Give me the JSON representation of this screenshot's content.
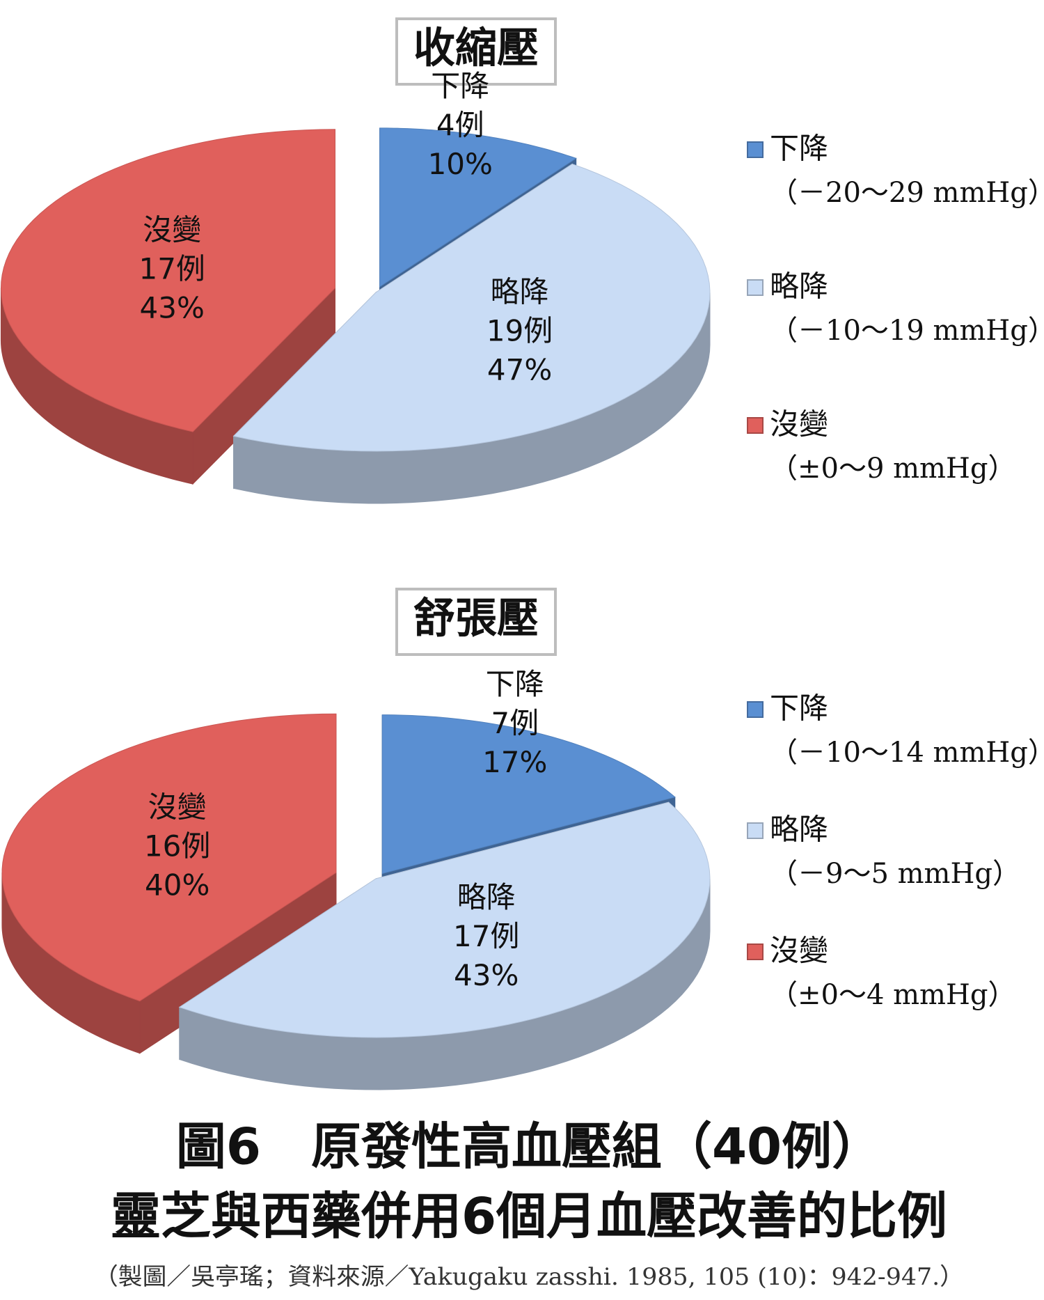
{
  "chart_data": [
    {
      "type": "pie",
      "title": "收縮壓",
      "categories": [
        "下降",
        "略降",
        "沒變"
      ],
      "legend_notes": [
        "（－20～29 mmHg）",
        "（－10～19 mmHg）",
        "（±0～9 mmHg）"
      ],
      "count_labels": [
        "4例",
        "19例",
        "17例"
      ],
      "values": [
        10,
        47,
        43
      ],
      "value_labels": [
        "10%",
        "47%",
        "43%"
      ],
      "colors": [
        "#5a8fd2",
        "#c9dcf5",
        "#e0605c"
      ]
    },
    {
      "type": "pie",
      "title": "舒張壓",
      "categories": [
        "下降",
        "略降",
        "沒變"
      ],
      "legend_notes": [
        "（－10～14 mmHg）",
        "（－9～5 mmHg）",
        "（±0～4 mmHg）"
      ],
      "count_labels": [
        "7例",
        "17例",
        "16例"
      ],
      "values": [
        17,
        43,
        40
      ],
      "value_labels": [
        "17%",
        "43%",
        "40%"
      ],
      "colors": [
        "#5a8fd2",
        "#c9dcf5",
        "#e0605c"
      ]
    }
  ],
  "caption": {
    "line1": "圖6　原發性高血壓組（40例）",
    "line2": "靈芝與西藥併用6個月血壓改善的比例",
    "source": "（製圖／吳亭瑤；資料來源／Yakugaku zasshi. 1985, 105 (10)：942-947.）"
  }
}
